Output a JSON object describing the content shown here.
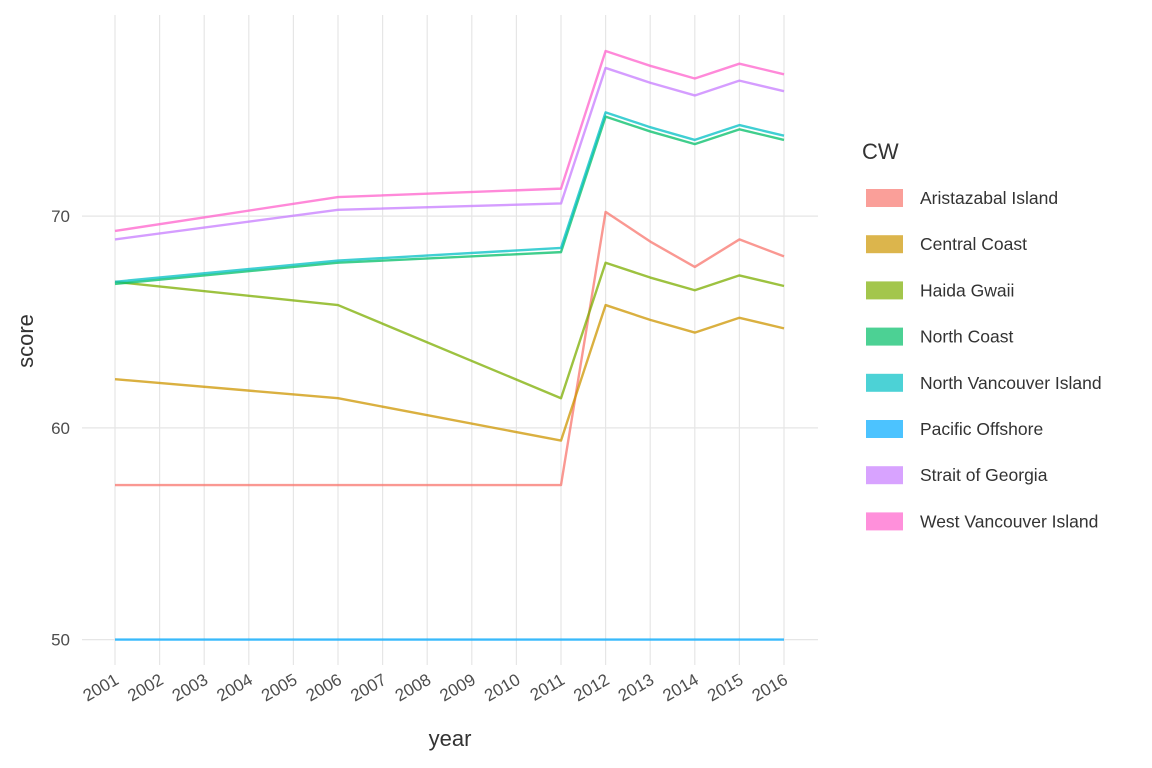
{
  "chart_data": {
    "type": "line",
    "xlabel": "year",
    "ylabel": "score",
    "legend_title": "CW",
    "legend_position": "right",
    "grid": true,
    "xlim": [
      2001,
      2016
    ],
    "ylim": [
      48.8,
      79.5
    ],
    "x_ticks": [
      2001,
      2002,
      2003,
      2004,
      2005,
      2006,
      2007,
      2008,
      2009,
      2010,
      2011,
      2012,
      2013,
      2014,
      2015,
      2016
    ],
    "y_ticks": [
      50,
      60,
      70
    ],
    "series": [
      {
        "name": "Aristazabal Island",
        "color": "#F8766D",
        "points": [
          [
            2001,
            57.3
          ],
          [
            2006,
            57.3
          ],
          [
            2011,
            57.3
          ],
          [
            2012,
            70.2
          ],
          [
            2013,
            68.8
          ],
          [
            2014,
            67.6
          ],
          [
            2015,
            68.9
          ],
          [
            2016,
            68.1
          ]
        ]
      },
      {
        "name": "Central Coast",
        "color": "#CD9600",
        "points": [
          [
            2001,
            62.3
          ],
          [
            2006,
            61.4
          ],
          [
            2011,
            59.4
          ],
          [
            2012,
            65.8
          ],
          [
            2013,
            65.1
          ],
          [
            2014,
            64.5
          ],
          [
            2015,
            65.2
          ],
          [
            2016,
            64.7
          ]
        ]
      },
      {
        "name": "Haida Gwaii",
        "color": "#7CAE00",
        "points": [
          [
            2001,
            66.9
          ],
          [
            2006,
            65.8
          ],
          [
            2011,
            61.4
          ],
          [
            2012,
            67.8
          ],
          [
            2013,
            67.1
          ],
          [
            2014,
            66.5
          ],
          [
            2015,
            67.2
          ],
          [
            2016,
            66.7
          ]
        ]
      },
      {
        "name": "North Coast",
        "color": "#00BE67",
        "points": [
          [
            2001,
            66.8
          ],
          [
            2006,
            67.8
          ],
          [
            2011,
            68.3
          ],
          [
            2012,
            74.7
          ],
          [
            2013,
            74.0
          ],
          [
            2014,
            73.4
          ],
          [
            2015,
            74.1
          ],
          [
            2016,
            73.6
          ]
        ]
      },
      {
        "name": "North Vancouver Island",
        "color": "#00BFC4",
        "points": [
          [
            2001,
            66.9
          ],
          [
            2006,
            67.9
          ],
          [
            2011,
            68.5
          ],
          [
            2012,
            74.9
          ],
          [
            2013,
            74.2
          ],
          [
            2014,
            73.6
          ],
          [
            2015,
            74.3
          ],
          [
            2016,
            73.8
          ]
        ]
      },
      {
        "name": "Pacific Offshore",
        "color": "#00A9FF",
        "points": [
          [
            2001,
            50.0
          ],
          [
            2006,
            50.0
          ],
          [
            2011,
            50.0
          ],
          [
            2012,
            50.0
          ],
          [
            2013,
            50.0
          ],
          [
            2014,
            50.0
          ],
          [
            2015,
            50.0
          ],
          [
            2016,
            50.0
          ]
        ]
      },
      {
        "name": "Strait of Georgia",
        "color": "#C77CFF",
        "points": [
          [
            2001,
            68.9
          ],
          [
            2006,
            70.3
          ],
          [
            2011,
            70.6
          ],
          [
            2012,
            77.0
          ],
          [
            2013,
            76.3
          ],
          [
            2014,
            75.7
          ],
          [
            2015,
            76.4
          ],
          [
            2016,
            75.9
          ]
        ]
      },
      {
        "name": "West Vancouver Island",
        "color": "#FF61CC",
        "points": [
          [
            2001,
            69.3
          ],
          [
            2006,
            70.9
          ],
          [
            2011,
            71.3
          ],
          [
            2012,
            77.8
          ],
          [
            2013,
            77.1
          ],
          [
            2014,
            76.5
          ],
          [
            2015,
            77.2
          ],
          [
            2016,
            76.7
          ]
        ]
      }
    ]
  }
}
